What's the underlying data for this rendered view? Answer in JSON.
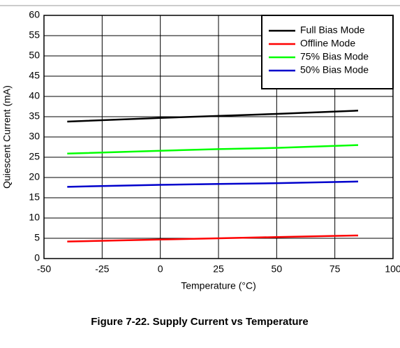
{
  "chart_data": {
    "type": "line",
    "title": "Figure 7-22. Supply Current vs Temperature",
    "xlabel": "Temperature (°C)",
    "ylabel": "Quiescent Current (mA)",
    "x": [
      -40,
      0,
      25,
      50,
      85
    ],
    "series": [
      {
        "name": "Full Bias Mode",
        "color": "#000000",
        "values": [
          33.8,
          34.7,
          35.2,
          35.7,
          36.5
        ]
      },
      {
        "name": "Offline Mode",
        "color": "#ff0000",
        "values": [
          4.2,
          4.7,
          5.0,
          5.3,
          5.7
        ]
      },
      {
        "name": "75% Bias Mode",
        "color": "#00ff00",
        "values": [
          25.9,
          26.6,
          27.0,
          27.3,
          28.0
        ]
      },
      {
        "name": "50% Bias Mode",
        "color": "#0000cc",
        "values": [
          17.7,
          18.2,
          18.4,
          18.6,
          19.0
        ]
      }
    ],
    "xlim": [
      -50,
      100
    ],
    "xticks": [
      -50,
      -25,
      0,
      25,
      50,
      75,
      100
    ],
    "ylim": [
      0,
      60
    ],
    "yticks": [
      0,
      5,
      10,
      15,
      20,
      25,
      30,
      35,
      40,
      45,
      50,
      55,
      60
    ],
    "grid": true,
    "legend": "upper right"
  }
}
